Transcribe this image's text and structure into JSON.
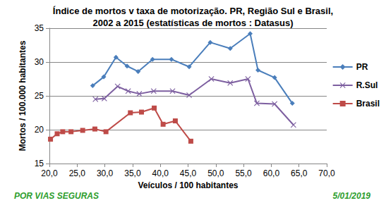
{
  "chart_data": {
    "type": "line",
    "title": "Índice de mortos v taxa de motorização. PR, Região Sul e Brasil,\n2002 a 2015 (estatísticas de mortos : Datasus)",
    "x_label": "Veículos / 100 habitantes",
    "y_label": "Mortos / 100.000 habitantes",
    "annotations": [
      {
        "text": "POR VIAS SEGURAS"
      },
      {
        "text": "5/01/2019"
      }
    ],
    "series": [
      {
        "name": "PR",
        "color": "#4a7ebb",
        "marker": "diamond",
        "x": [
          27.8,
          29.8,
          32.0,
          34.0,
          36.0,
          38.6,
          42.0,
          45.2,
          49.0,
          52.6,
          56.2,
          57.6,
          60.6,
          63.8
        ],
        "values": [
          26.5,
          27.8,
          30.7,
          29.4,
          28.6,
          30.4,
          30.4,
          29.3,
          32.9,
          32.0,
          34.2,
          28.8,
          27.7,
          23.9
        ]
      },
      {
        "name": "R.Sul",
        "color": "#7d5fa0",
        "marker": "x",
        "x": [
          28.3,
          29.9,
          32.3,
          34.2,
          36.2,
          38.8,
          42.2,
          45.2,
          49.2,
          52.6,
          55.8,
          57.4,
          60.6,
          64.0
        ],
        "values": [
          24.5,
          24.6,
          26.4,
          25.7,
          25.3,
          25.7,
          25.7,
          25.1,
          27.5,
          26.9,
          27.5,
          23.9,
          23.8,
          20.7
        ]
      },
      {
        "name": "Brasil",
        "color": "#be4b48",
        "marker": "square",
        "x": [
          20.2,
          21.4,
          22.4,
          23.9,
          26.0,
          28.2,
          30.2,
          34.6,
          36.6,
          38.9,
          40.5,
          42.7,
          45.5
        ],
        "values": [
          18.6,
          19.4,
          19.7,
          19.7,
          19.9,
          20.1,
          19.7,
          22.5,
          22.6,
          23.2,
          20.8,
          21.3,
          18.3
        ]
      }
    ],
    "xlim": [
      20,
      70
    ],
    "xticks": [
      {
        "value": 20,
        "label": "20,0"
      },
      {
        "value": 25,
        "label": "25,0"
      },
      {
        "value": 30,
        "label": "30,0"
      },
      {
        "value": 35,
        "label": "35,0"
      },
      {
        "value": 40,
        "label": "40,0"
      },
      {
        "value": 45,
        "label": "45,0"
      },
      {
        "value": 50,
        "label": "50,0"
      },
      {
        "value": 55,
        "label": "55,0"
      },
      {
        "value": 60,
        "label": "60,0"
      },
      {
        "value": 65,
        "label": "65,0"
      },
      {
        "value": 70,
        "label": "70,0"
      }
    ],
    "ylim": [
      15,
      35
    ],
    "yticks": [
      15,
      20,
      25,
      30,
      35
    ],
    "grid": true,
    "legend": "right"
  }
}
